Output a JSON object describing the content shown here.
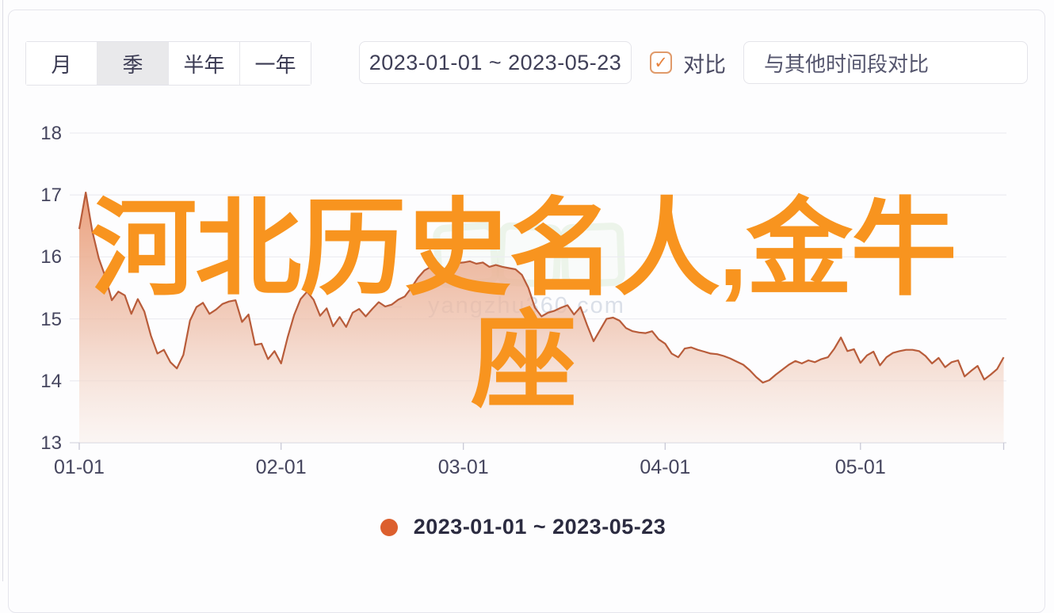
{
  "toolbar": {
    "period_tabs": [
      {
        "label": "月",
        "selected": false
      },
      {
        "label": "季",
        "selected": true
      },
      {
        "label": "半年",
        "selected": false
      },
      {
        "label": "一年",
        "selected": false
      }
    ],
    "date_range_value": "2023-01-01 ~ 2023-05-23",
    "compare_checkbox": {
      "checked": true,
      "check_glyph": "✓",
      "label": "对比"
    },
    "compare_input_placeholder": "与其他时间段对比"
  },
  "watermark_overlay": {
    "line1": "河北历史名人,金牛",
    "line2": "座",
    "color": "#f8941f"
  },
  "site_watermark": {
    "dash": "—",
    "text": "yangzhu360.com"
  },
  "legend": {
    "series_label": "2023-01-01 ~ 2023-05-23",
    "dot_color": "#dc5f2e"
  },
  "colors": {
    "line": "#b85c3a",
    "area_top": "#e8936a",
    "area_mid": "#eec0ab",
    "area_bottom": "#f8ece6",
    "gridline": "#ededf2",
    "axis_line": "#d9d9e2",
    "accent_orange": "#f8941f",
    "legend_dot": "#dc5f2e"
  },
  "chart_data": {
    "type": "area",
    "title": "",
    "legend_position": "bottom",
    "series_name": "2023-01-01 ~ 2023-05-23",
    "x_axis": {
      "start_date": "2023-01-01",
      "end_date": "2023-05-23",
      "total_days": 142,
      "tick_labels": [
        "01-01",
        "02-01",
        "03-01",
        "04-01",
        "05-01"
      ],
      "tick_days": [
        0,
        31,
        59,
        90,
        120
      ]
    },
    "y_axis": {
      "min": 13,
      "max": 18,
      "ticks": [
        18,
        17,
        16,
        15,
        14,
        13
      ]
    },
    "values_daily": [
      16.45,
      17.04,
      16.42,
      15.98,
      15.68,
      15.3,
      15.44,
      15.38,
      15.08,
      15.32,
      15.12,
      14.73,
      14.44,
      14.5,
      14.3,
      14.2,
      14.42,
      14.97,
      15.19,
      15.26,
      15.08,
      15.15,
      15.24,
      15.28,
      15.3,
      14.95,
      15.07,
      14.58,
      14.6,
      14.35,
      14.48,
      14.28,
      14.7,
      15.06,
      15.32,
      15.44,
      15.31,
      15.05,
      15.17,
      14.88,
      15.03,
      14.87,
      15.1,
      15.16,
      15.04,
      15.16,
      15.27,
      15.2,
      15.23,
      15.31,
      15.36,
      15.5,
      15.66,
      15.78,
      15.84,
      15.88,
      15.77,
      15.86,
      15.9,
      15.91,
      15.93,
      15.89,
      15.91,
      15.84,
      15.87,
      15.84,
      15.82,
      15.8,
      15.71,
      15.5,
      15.18,
      15.04,
      15.1,
      15.13,
      15.18,
      15.22,
      15.07,
      15.19,
      14.9,
      14.64,
      14.82,
      15.0,
      15.02,
      14.97,
      14.85,
      14.8,
      14.78,
      14.77,
      14.8,
      14.67,
      14.6,
      14.44,
      14.38,
      14.52,
      14.54,
      14.5,
      14.47,
      14.44,
      14.43,
      14.4,
      14.36,
      14.31,
      14.26,
      14.17,
      14.06,
      13.97,
      14.01,
      14.1,
      14.18,
      14.26,
      14.32,
      14.28,
      14.33,
      14.3,
      14.35,
      14.38,
      14.52,
      14.7,
      14.48,
      14.51,
      14.29,
      14.41,
      14.47,
      14.25,
      14.38,
      14.45,
      14.48,
      14.5,
      14.5,
      14.48,
      14.4,
      14.28,
      14.37,
      14.22,
      14.3,
      14.33,
      14.07,
      14.16,
      14.24,
      14.02,
      14.1,
      14.19,
      14.38
    ]
  }
}
